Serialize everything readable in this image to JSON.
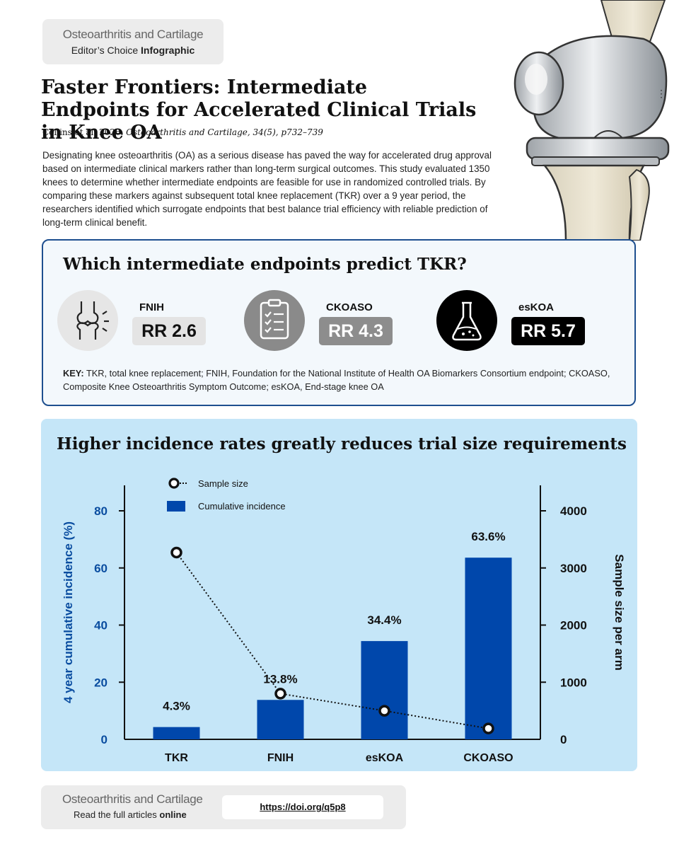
{
  "header": {
    "journal_name": "Osteoarthritis and Cartilage",
    "badge_prefix": "Editor’s Choice",
    "badge_strong": "Infographic"
  },
  "title": "Faster Frontiers: Intermediate Endpoints for Accelerated Clinical Trials in Knee OA",
  "citation": {
    "authors": "Collins et al. 2026.",
    "journal": "Osteoarthritis and Cartilage, 34(5), p732–739"
  },
  "abstract": "Designating knee osteoarthritis (OA) as a serious disease has paved the way for accelerated drug approval based on intermediate clinical markers rather than long-term surgical outcomes. This study evaluated 1350 knees to determine whether intermediate endpoints are feasible for use in randomized controlled trials. By comparing these markers against subsequent total knee replacement (TKR) over a 9 year period, the researchers identified which surrogate endpoints that best balance trial efficiency with reliable prediction of long-term clinical benefit.",
  "endpoints_panel": {
    "title": "Which intermediate endpoints predict TKR?",
    "items": [
      {
        "name": "FNIH",
        "rr": "RR 2.6",
        "icon": "knee-joint-icon",
        "circle_color": "#e6e6e6",
        "box_color": "#e4e4e4",
        "text_color": "#111111"
      },
      {
        "name": "CKOASO",
        "rr": "RR 4.3",
        "icon": "clipboard-checklist-icon",
        "circle_color": "#8a8a8a",
        "box_color": "#8d8d8d",
        "text_color": "#ffffff"
      },
      {
        "name": "esKOA",
        "rr": "RR 5.7",
        "icon": "flask-icon",
        "circle_color": "#000000",
        "box_color": "#000000",
        "text_color": "#ffffff"
      }
    ],
    "key_label": "KEY:",
    "key_text": "TKR, total knee replacement; FNIH, Foundation for the National Institute of Health OA Biomarkers Consortium endpoint; CKOASO, Composite Knee Osteoarthritis Symptom Outcome; esKOA, End-stage knee OA"
  },
  "chart_panel": {
    "title": "Higher incidence rates greatly reduces trial size requirements"
  },
  "chart_data": {
    "type": "bar",
    "categories": [
      "TKR",
      "FNIH",
      "esKOA",
      "CKOASO"
    ],
    "series": [
      {
        "name": "Cumulative incidence",
        "type": "bar",
        "axis": "left",
        "values": [
          4.3,
          13.8,
          34.4,
          63.6
        ],
        "labels": [
          "4.3%",
          "13.8%",
          "34.4%",
          "63.6%"
        ],
        "color": "#0047ab"
      },
      {
        "name": "Sample size",
        "type": "line",
        "axis": "right",
        "values": [
          3270,
          800,
          500,
          190
        ],
        "color": "#111111"
      }
    ],
    "ylabel": "4 year cumulative incidence (%)",
    "y2label": "Sample size per arm",
    "ylim": [
      0,
      80
    ],
    "yticks": [
      0,
      20,
      40,
      60,
      80
    ],
    "y2lim": [
      0,
      4000
    ],
    "y2ticks": [
      0,
      1000,
      2000,
      3000,
      4000
    ],
    "legend_position": "top-left"
  },
  "footer": {
    "journal_name": "Osteoarthritis and Cartilage",
    "sub_prefix": "Read the full articles",
    "sub_strong": "online",
    "doi": "https://doi.org/q5p8"
  }
}
